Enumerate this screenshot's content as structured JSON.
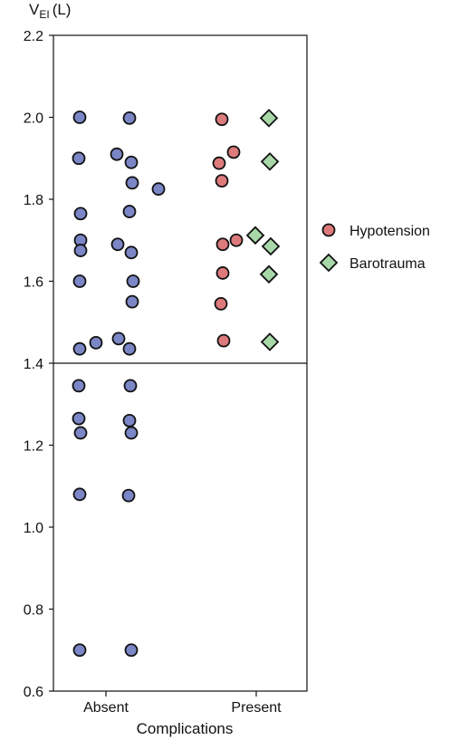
{
  "chart_data": {
    "type": "scatter",
    "ylabel": "V",
    "ylabel_subscript": "EI",
    "ylabel_suffix": "(L)",
    "xlabel": "Complications",
    "ylim": [
      0.6,
      2.2
    ],
    "yticks": [
      "0.6",
      "0.8",
      "1.0",
      "1.2",
      "1.4",
      "1.6",
      "1.8",
      "2.0",
      "2.2"
    ],
    "reference_line_y": 1.4,
    "categories": [
      "Absent",
      "Present"
    ],
    "legend_position": "right",
    "colors": {
      "absent": "#7b86c6",
      "hypotension": "#dd7a7c",
      "barotrauma": "#a8d8a8",
      "outline": "#111111"
    },
    "series": [
      {
        "category": "Absent",
        "marker": "circle",
        "values": [
          2.0,
          1.9,
          1.765,
          1.7,
          1.675,
          1.6,
          1.435,
          1.45,
          1.345,
          1.265,
          1.23,
          1.08,
          0.7,
          1.998,
          1.91,
          1.89,
          1.84,
          1.825,
          1.77,
          1.69,
          1.67,
          1.6,
          1.55,
          1.46,
          1.435,
          1.345,
          1.26,
          1.23,
          1.077,
          0.7
        ]
      },
      {
        "name": "Hypotension",
        "category": "Present",
        "marker": "circle",
        "values": [
          1.995,
          1.915,
          1.888,
          1.845,
          1.69,
          1.7,
          1.62,
          1.545,
          1.455
        ]
      },
      {
        "name": "Barotrauma",
        "category": "Present",
        "marker": "diamond",
        "values": [
          1.998,
          1.892,
          1.712,
          1.685,
          1.617,
          1.452
        ]
      }
    ]
  }
}
